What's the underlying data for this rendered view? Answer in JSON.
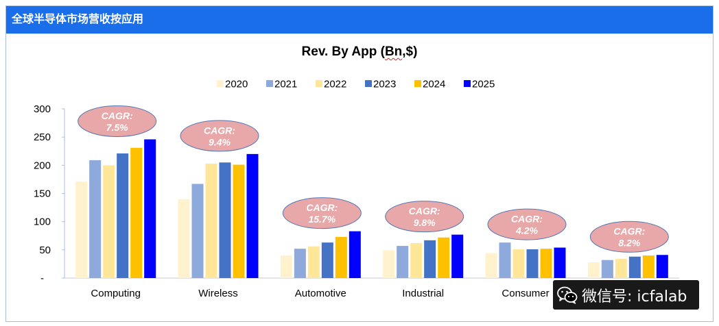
{
  "header": {
    "title": "全球半导体市场营收按应用",
    "bg_color": "#1B6EE9"
  },
  "chart_data": {
    "type": "bar",
    "title": "Rev. By App (Bn,$)",
    "xlabel": "",
    "ylabel": "",
    "categories": [
      "Computing",
      "Wireless",
      "Automotive",
      "Industrial",
      "Consumer",
      ""
    ],
    "series": [
      {
        "name": "2020",
        "color": "#FFF2CC",
        "values": [
          171,
          140,
          40,
          49,
          44,
          28
        ]
      },
      {
        "name": "2021",
        "color": "#8EA9DB",
        "values": [
          209,
          167,
          52,
          57,
          63,
          32
        ]
      },
      {
        "name": "2022",
        "color": "#FFE699",
        "values": [
          200,
          203,
          56,
          62,
          51,
          34
        ]
      },
      {
        "name": "2023",
        "color": "#4472C4",
        "values": [
          221,
          205,
          63,
          67,
          51,
          38
        ]
      },
      {
        "name": "2024",
        "color": "#FFC000",
        "values": [
          231,
          201,
          73,
          72,
          52,
          40
        ]
      },
      {
        "name": "2025",
        "color": "#0000FF",
        "values": [
          246,
          220,
          83,
          77,
          54,
          41
        ]
      }
    ],
    "ylim": [
      0,
      300
    ],
    "yticks": [
      0,
      50,
      100,
      150,
      200,
      250,
      300
    ],
    "ytick_labels": [
      "-",
      "50",
      "100",
      "150",
      "200",
      "250",
      "300"
    ],
    "grid": false,
    "legend": "top",
    "annotations": [
      {
        "label": "CAGR:",
        "value": "7.5%"
      },
      {
        "label": "CAGR:",
        "value": "9.4%"
      },
      {
        "label": "CAGR:",
        "value": "15.7%"
      },
      {
        "label": "CAGR:",
        "value": "9.8%"
      },
      {
        "label": "CAGR:",
        "value": "4.2%"
      },
      {
        "label": "CAGR:",
        "value": "8.2%"
      }
    ],
    "annotation_fill": "#E8A8A9",
    "annotation_border": "#5476B3"
  },
  "watermark": {
    "icon": "wechat-icon",
    "text": "微信号: icfalab"
  }
}
